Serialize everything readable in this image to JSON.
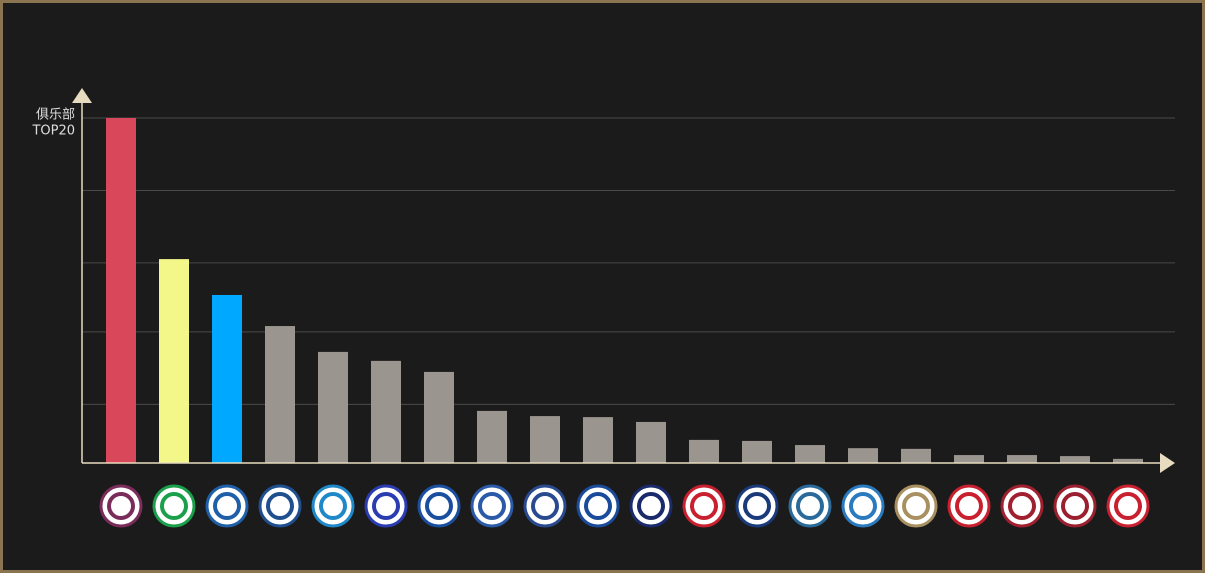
{
  "chart_data": {
    "type": "bar",
    "y_label_lines": [
      "俱乐部",
      "TOP20"
    ],
    "categories": [
      null,
      null,
      null,
      null,
      null,
      null,
      null,
      null,
      null,
      null,
      null,
      null,
      null,
      null,
      null,
      null,
      null,
      null,
      null,
      null
    ],
    "values": [
      100,
      59.1,
      48.7,
      39.7,
      32.2,
      29.6,
      26.4,
      15.1,
      13.6,
      13.3,
      11.9,
      6.7,
      6.4,
      5.2,
      4.3,
      4.1,
      2.3,
      2.3,
      2.0,
      1.2
    ],
    "colors": [
      "#d9475a",
      "#f3f78a",
      "#00a8ff",
      "#9a958f",
      "#9a958f",
      "#9a958f",
      "#9a958f",
      "#9a958f",
      "#9a958f",
      "#9a958f",
      "#9a958f",
      "#9a958f",
      "#9a958f",
      "#9a958f",
      "#9a958f",
      "#9a958f",
      "#9a958f",
      "#9a958f",
      "#9a958f",
      "#9a958f"
    ],
    "ylim": [
      0,
      100
    ],
    "yticks": [
      17,
      38,
      58,
      79,
      100
    ],
    "grid": true
  }
}
